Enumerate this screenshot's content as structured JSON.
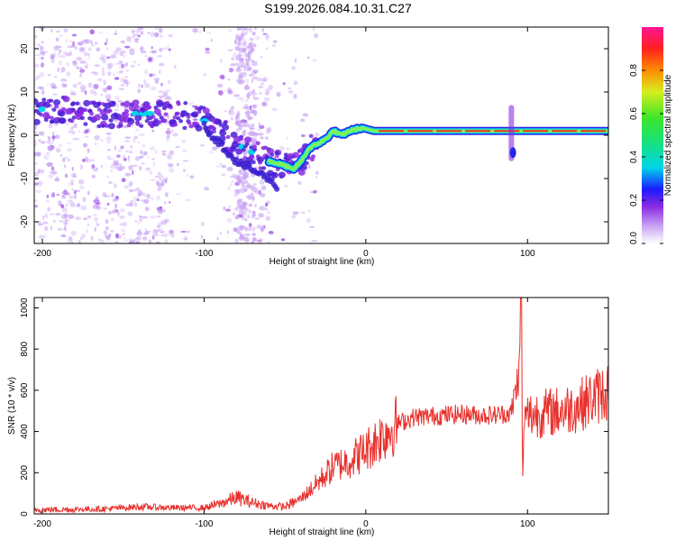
{
  "figure_title": "S199.2026.084.10.31.C27",
  "colors": {
    "snr_line": "#e8302c",
    "track_core": "#e8302c",
    "track_mid": "#7cf25a",
    "track_edge": "#00d5ea",
    "scatter_strong": "#2e32e0",
    "scatter_weak": "#c9a4f4"
  },
  "chart_data": [
    {
      "type": "heatmap",
      "xlabel": "Height of straight line (km)",
      "ylabel": "Frequency (Hz)",
      "xlim": [
        -205,
        150
      ],
      "ylim": [
        -25,
        25
      ],
      "xticks": [
        -200,
        -100,
        0,
        100
      ],
      "yticks": [
        -20,
        -10,
        0,
        10,
        20
      ],
      "xtick_labels": [
        "-200",
        "-100",
        "0",
        "100"
      ],
      "ytick_labels": [
        "-20",
        "-10",
        "0",
        "10",
        "20"
      ],
      "colorbar": {
        "label": "Normalized spectral amplitude",
        "range": [
          0.0,
          1.0
        ],
        "ticks": [
          0.0,
          0.2,
          0.4,
          0.6,
          0.8
        ],
        "tick_labels": [
          "0.0",
          "0.2",
          "0.4",
          "0.6",
          "0.8"
        ]
      },
      "main_trace": {
        "height_km": [
          -205,
          -190,
          -175,
          -160,
          -145,
          -130,
          -115,
          -100,
          -90,
          -80,
          -70,
          -60,
          -50,
          -45,
          -40,
          -35,
          -30,
          -25,
          -20,
          -15,
          -10,
          -5,
          0,
          5,
          10,
          20,
          40,
          60,
          80,
          90,
          100,
          120,
          140,
          150
        ],
        "frequency_hz": [
          6,
          6,
          5,
          5,
          5,
          5,
          5,
          3.5,
          1,
          -2,
          -4,
          -6,
          -7,
          -8,
          -6,
          -3,
          -2,
          -1,
          1,
          0,
          1,
          1.5,
          1.5,
          1,
          1,
          1,
          1,
          1,
          1,
          1,
          1,
          1,
          1,
          1
        ],
        "amplitude": [
          0.1,
          0.12,
          0.12,
          0.15,
          0.15,
          0.12,
          0.12,
          0.2,
          0.18,
          0.18,
          0.2,
          0.25,
          0.3,
          0.4,
          0.45,
          0.5,
          0.5,
          0.55,
          0.6,
          0.65,
          0.7,
          0.75,
          0.8,
          0.85,
          0.9,
          0.95,
          0.95,
          0.95,
          0.9,
          0.8,
          0.85,
          0.9,
          0.8,
          0.75
        ]
      },
      "secondary_trace": {
        "height_km": [
          -100,
          -90,
          -80,
          -70,
          -60,
          -55
        ],
        "frequency_hz": [
          2,
          -2,
          -6,
          -8,
          -10,
          -12
        ]
      },
      "spike": {
        "height_km": 90,
        "frequency_range_hz": [
          -6,
          7
        ]
      }
    },
    {
      "type": "line",
      "xlabel": "Height of straight line (km)",
      "ylabel": "SNR (10 * v/v)",
      "xlim": [
        -205,
        150
      ],
      "ylim": [
        0,
        1050
      ],
      "xticks": [
        -200,
        -100,
        0,
        100
      ],
      "yticks": [
        0,
        200,
        400,
        600,
        800,
        1000
      ],
      "xtick_labels": [
        "-200",
        "-100",
        "0",
        "100"
      ],
      "ytick_labels": [
        "0",
        "200",
        "400",
        "600",
        "800",
        "1000"
      ],
      "series": [
        {
          "name": "SNR",
          "x": [
            -205,
            -180,
            -160,
            -140,
            -120,
            -100,
            -90,
            -80,
            -70,
            -60,
            -50,
            -40,
            -30,
            -20,
            -10,
            0,
            10,
            20,
            30,
            40,
            50,
            60,
            70,
            80,
            90,
            95,
            96,
            97,
            98,
            100,
            110,
            120,
            130,
            140,
            150
          ],
          "values": [
            20,
            22,
            25,
            35,
            30,
            30,
            50,
            80,
            55,
            40,
            35,
            75,
            150,
            230,
            260,
            310,
            380,
            440,
            470,
            475,
            480,
            485,
            480,
            480,
            490,
            700,
            1050,
            150,
            470,
            480,
            490,
            500,
            520,
            560,
            600
          ]
        }
      ]
    }
  ]
}
